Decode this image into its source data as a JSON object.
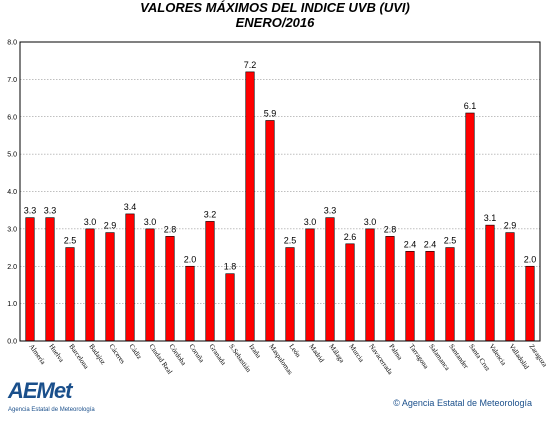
{
  "chart_data": {
    "type": "bar",
    "title": "VALORES MÁXIMOS DEL INDICE UVB (UVI)",
    "subtitle": "ENERO/2016",
    "categories": [
      "Almería",
      "Huelva",
      "Barcelona",
      "Badajoz",
      "Cáceres",
      "Cádiz",
      "Ciudad Real",
      "Córdoba",
      "Coruña",
      "Granada",
      "S.Sebastián",
      "Izaña",
      "Maspalomas",
      "León",
      "Madrid",
      "Málaga",
      "Murcia",
      "Navacerrada",
      "Palma",
      "Tarragona",
      "Salamanca",
      "Santander",
      "Santa Cruz",
      "Valencia",
      "Valladolid",
      "Zaragoza"
    ],
    "values": [
      3.3,
      3.3,
      2.5,
      3.0,
      2.9,
      3.4,
      3.0,
      2.8,
      2.0,
      3.2,
      1.8,
      7.2,
      5.9,
      2.5,
      3.0,
      3.3,
      2.6,
      3.0,
      2.8,
      2.4,
      2.4,
      2.5,
      6.1,
      3.1,
      2.9,
      2.0
    ],
    "data_labels": [
      "3.3",
      "3.3",
      "2.5",
      "3.0",
      "2.9",
      "3.4",
      "3.0",
      "2.8",
      "2.0",
      "3.2",
      "1.8",
      "7.2",
      "5.9",
      "2.5",
      "3.0",
      "3.3",
      "2.6",
      "3.0",
      "2.8",
      "2.4",
      "2.4",
      "2.5",
      "6.1",
      "3.1",
      "2.9",
      "2.0"
    ],
    "ylim": [
      0,
      8
    ],
    "yticks": [
      "0.0",
      "1.0",
      "2.0",
      "3.0",
      "4.0",
      "5.0",
      "6.0",
      "7.0",
      "8.0"
    ],
    "grid": true,
    "bar_color": "#ff0000",
    "bar_border_color": "#000000"
  },
  "logo": {
    "word": "AEMet",
    "subtitle": "Agencia Estatal de Meteorología",
    "color": "#1a4f8b"
  },
  "footer": {
    "copyright": "© Agencia Estatal de Meteorología"
  }
}
